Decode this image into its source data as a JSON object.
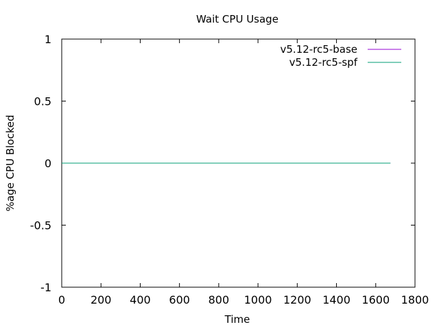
{
  "chart_data": {
    "type": "line",
    "title": "Wait CPU Usage",
    "xlabel": "Time",
    "ylabel": "%age CPU Blocked",
    "xlim": [
      0,
      1800
    ],
    "ylim": [
      -1,
      1
    ],
    "x_ticks": [
      0,
      200,
      400,
      600,
      800,
      1000,
      1200,
      1400,
      1600,
      1800
    ],
    "y_ticks": [
      -1,
      -0.5,
      0,
      0.5,
      1
    ],
    "grid": false,
    "legend_position": "top-right",
    "series": [
      {
        "name": "v5.12-rc5-base",
        "color": "#9400d3",
        "x": [
          0,
          1675
        ],
        "y": [
          0,
          0
        ]
      },
      {
        "name": "v5.12-rc5-spf",
        "color": "#009e73",
        "x": [
          0,
          1675
        ],
        "y": [
          0,
          0
        ]
      }
    ]
  }
}
